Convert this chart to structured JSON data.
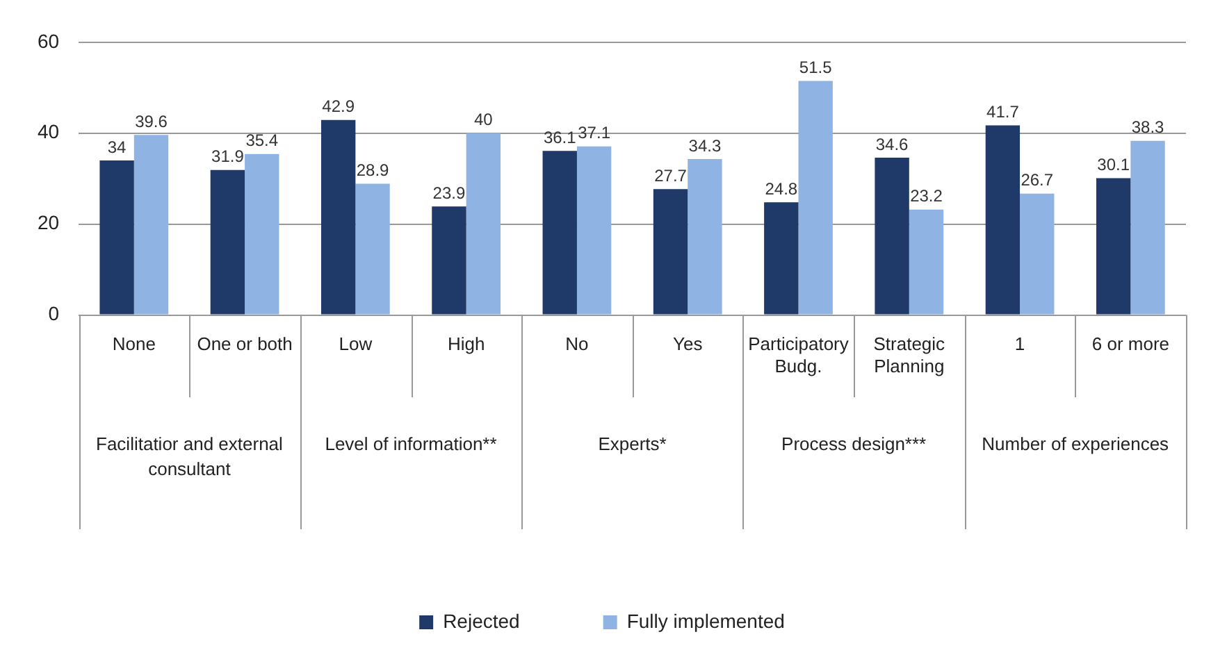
{
  "chart_data": {
    "type": "bar",
    "categories": [
      "None",
      "One or both",
      "Low",
      "High",
      "No",
      "Yes",
      "Participatory Budg.",
      "Strategic Planning",
      "1",
      "6 or more"
    ],
    "series": [
      {
        "name": "Rejected",
        "color": "#1f3a68",
        "values": [
          34,
          31.9,
          42.9,
          23.9,
          36.1,
          27.7,
          24.8,
          34.6,
          41.7,
          30.1
        ]
      },
      {
        "name": "Fully implemented",
        "color": "#8fb4e3",
        "values": [
          39.6,
          35.4,
          28.9,
          40,
          37.1,
          34.3,
          51.5,
          23.2,
          26.7,
          38.3
        ]
      }
    ],
    "annotations": [
      "Facilitatior and external consultant",
      "Level of information**",
      "Experts*",
      "Process design***",
      "Number of experiences"
    ],
    "ylim": [
      0,
      60
    ],
    "yticks": [
      0,
      20,
      40,
      60
    ],
    "grid": "y",
    "legend": "bottom",
    "data_labels": true
  }
}
